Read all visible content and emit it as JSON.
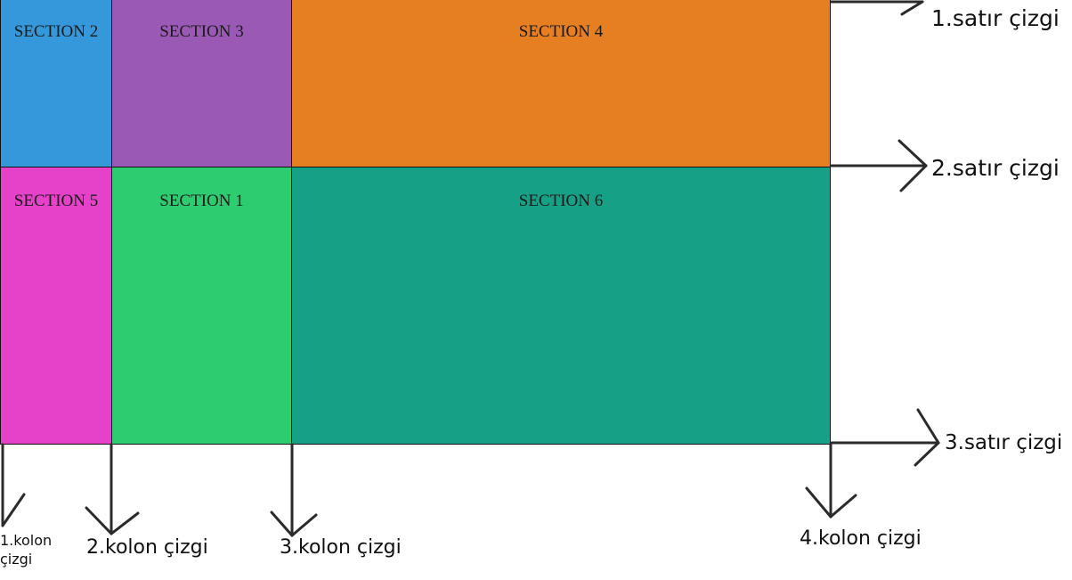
{
  "sections": {
    "s2": "SECTION 2",
    "s3": "SECTION 3",
    "s4": "SECTION 4",
    "s5": "SECTION 5",
    "s1": "SECTION 1",
    "s6": "SECTION 6"
  },
  "colors": {
    "section2": "#3498db",
    "section3": "#9b59b6",
    "section4": "#e67e22",
    "section5": "#e641c9",
    "section1": "#2ecc71",
    "section6": "#16a085",
    "arrow": "#2b2b2b"
  },
  "annotations": {
    "row_line_1": "1.satır çizgi",
    "row_line_2": "2.satır çizgi",
    "row_line_3": "3.satır çizgi",
    "col_line_1": "1.kolon çizgi",
    "col_line_2": "2.kolon çizgi",
    "col_line_3": "3.kolon çizgi",
    "col_line_4": "4.kolon çizgi"
  }
}
